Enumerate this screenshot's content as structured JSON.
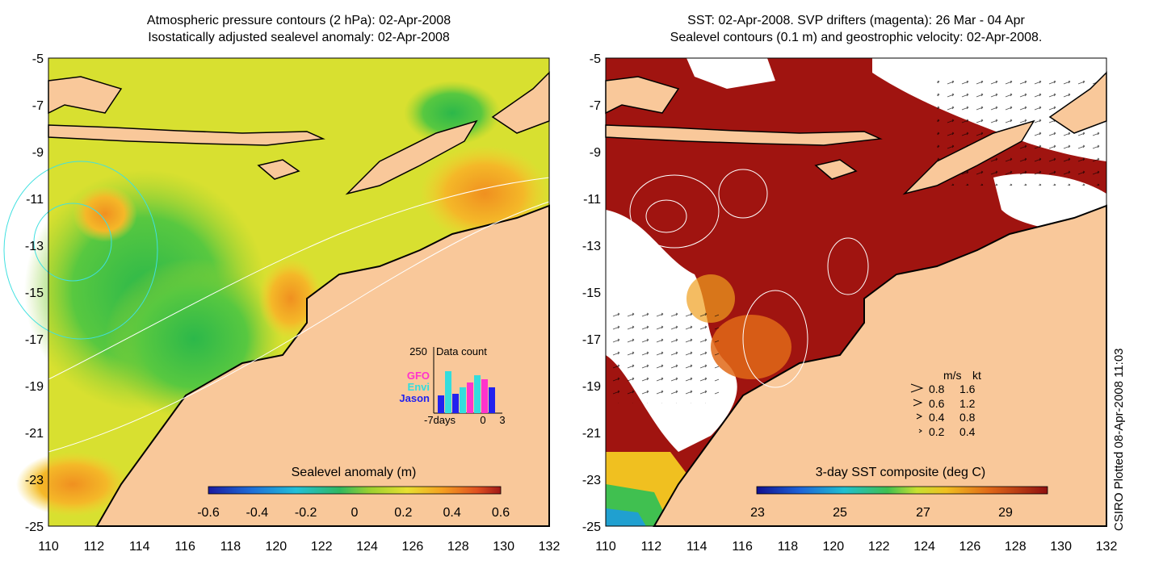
{
  "left_panel": {
    "title_line1": "Atmospheric pressure contours (2 hPa): 02-Apr-2008",
    "title_line2": "Isostatically adjusted sealevel anomaly: 02-Apr-2008",
    "colorbar_label": "Sealevel anomaly (m)",
    "colorbar_ticks": [
      "-0.6",
      "-0.4",
      "-0.2",
      "0",
      "0.2",
      "0.4",
      "0.6"
    ],
    "inset": {
      "axis_max": "250",
      "title": "Data count",
      "legend": [
        {
          "label": "GFO",
          "color": "#ff33cc"
        },
        {
          "label": "Envi",
          "color": "#33dddd"
        },
        {
          "label": "Jason",
          "color": "#2222ee"
        }
      ],
      "x_labels": [
        "-7days",
        "0",
        "3"
      ]
    }
  },
  "right_panel": {
    "title_line1": "SST: 02-Apr-2008. SVP drifters (magenta): 26 Mar - 04 Apr",
    "title_line2": "Sealevel contours (0.1 m) and geostrophic velocity: 02-Apr-2008.",
    "colorbar_label": "3-day SST composite (deg C)",
    "colorbar_ticks": [
      "23",
      "25",
      "27",
      "29"
    ],
    "velocity_legend": {
      "header_ms": "m/s",
      "header_kt": "kt",
      "rows": [
        {
          "ms": "0.8",
          "kt": "1.6"
        },
        {
          "ms": "0.6",
          "kt": "1.2"
        },
        {
          "ms": "0.4",
          "kt": "0.8"
        },
        {
          "ms": "0.2",
          "kt": "0.4"
        }
      ]
    }
  },
  "axes": {
    "x_ticks": [
      "110",
      "112",
      "114",
      "116",
      "118",
      "120",
      "122",
      "124",
      "126",
      "128",
      "130",
      "132"
    ],
    "y_ticks": [
      "-5",
      "-7",
      "-9",
      "-11",
      "-13",
      "-15",
      "-17",
      "-19",
      "-21",
      "-23",
      "-25"
    ]
  },
  "credit": "CSIRO Plotted 08-Apr-2008 11:03"
}
